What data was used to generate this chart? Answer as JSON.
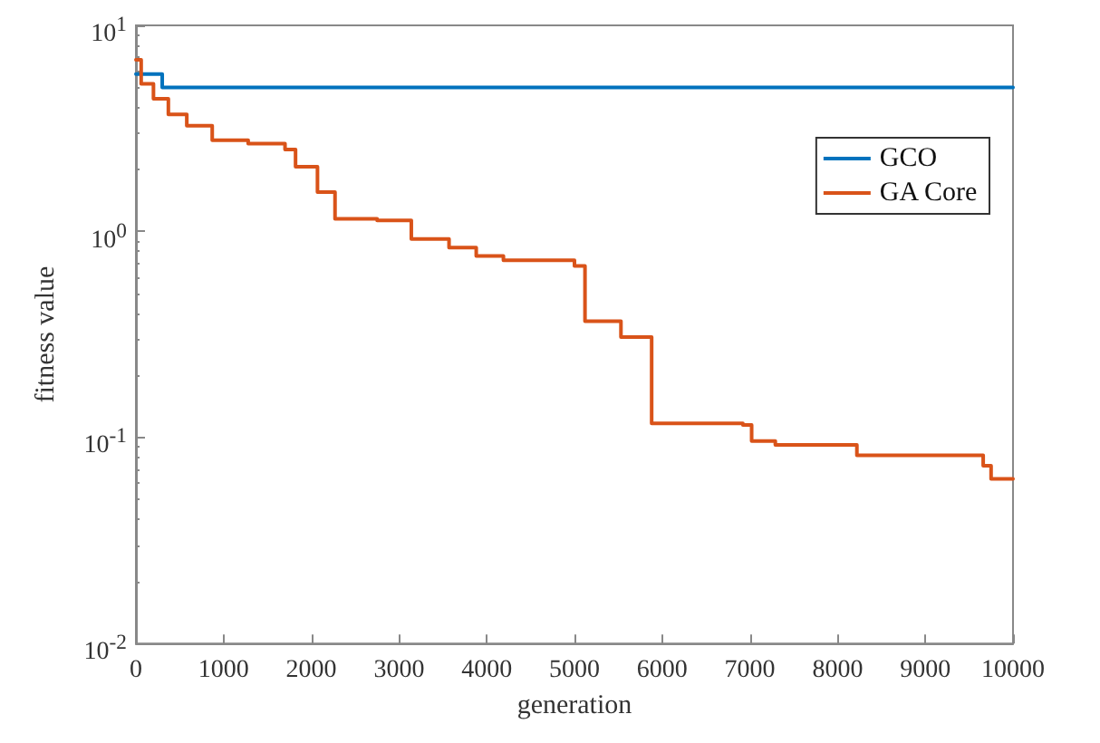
{
  "chart_data": {
    "type": "step",
    "xlabel": "generation",
    "ylabel": "fitness value",
    "log": "y",
    "xlim": [
      0,
      10000
    ],
    "xticks": [
      0,
      1000,
      2000,
      3000,
      4000,
      5000,
      6000,
      7000,
      8000,
      9000,
      10000
    ],
    "ylim": [
      0.01,
      10
    ],
    "yticks": [
      {
        "value": 0.01,
        "label": "10$^{-2}$"
      },
      {
        "value": 0.1,
        "label": "10$^{-1}$"
      },
      {
        "value": 1,
        "label": "10$^{0}$"
      },
      {
        "value": 10,
        "label": "10$^{1}$"
      }
    ],
    "grid": false,
    "legend": "top right",
    "marker": "none",
    "line_style": "solid",
    "series": [
      {
        "name": "GCO",
        "color": "#0072bd",
        "x": [
          0,
          300,
          10000
        ],
        "values": [
          5.8,
          5.0,
          5.0
        ]
      },
      {
        "name": "GA Core",
        "color": "#d95319",
        "x": [
          0,
          60,
          200,
          370,
          580,
          870,
          1280,
          1700,
          1820,
          2070,
          2270,
          2750,
          3140,
          3570,
          3880,
          4190,
          5000,
          5120,
          5530,
          5880,
          6920,
          7020,
          7290,
          8220,
          9660,
          9750,
          10000
        ],
        "values": [
          6.8,
          5.2,
          4.4,
          3.7,
          3.26,
          2.77,
          2.67,
          2.5,
          2.06,
          1.55,
          1.15,
          1.13,
          0.92,
          0.835,
          0.76,
          0.725,
          0.68,
          0.367,
          0.307,
          0.117,
          0.115,
          0.096,
          0.092,
          0.082,
          0.073,
          0.063,
          0.063
        ]
      }
    ]
  }
}
